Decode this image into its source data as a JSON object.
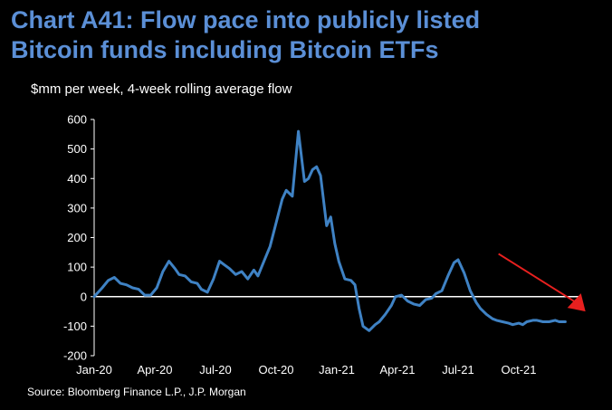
{
  "header": {
    "title_line1": "Chart A41: Flow pace into publicly listed",
    "title_line2": "Bitcoin funds including Bitcoin ETFs"
  },
  "footer": {
    "source": "Source: Bloomberg Finance L.P., J.P. Morgan"
  },
  "colors": {
    "line": "#3f82c4",
    "title": "#5b8fd6",
    "arrow": "#e8201f",
    "background": "#000000"
  },
  "chart_data": {
    "type": "line",
    "title": "Chart A41: Flow pace into publicly listed Bitcoin funds including Bitcoin ETFs",
    "subtitle": "$mm per week, 4-week rolling average flow",
    "xlabel": "",
    "ylabel": "$mm per week",
    "ylim": [
      -200,
      600
    ],
    "yticks": [
      -200,
      -100,
      0,
      100,
      200,
      300,
      400,
      500,
      600
    ],
    "ytick_labels": [
      "-200",
      "-100",
      "0",
      "100",
      "200",
      "300",
      "400",
      "500",
      "600"
    ],
    "xtick_labels": [
      "Jan-20",
      "Apr-20",
      "Jul-20",
      "Oct-20",
      "Jan-21",
      "Apr-21",
      "Jul-21",
      "Oct-21"
    ],
    "xtick_months": [
      0,
      3,
      6,
      9,
      12,
      15,
      18,
      21
    ],
    "xlim_months": [
      0,
      24
    ],
    "zero_line": true,
    "annotation": "red downward arrow at end of series",
    "series": [
      {
        "name": "4-week rolling average flow",
        "x_months": [
          0.0,
          0.4,
          0.7,
          1.0,
          1.3,
          1.6,
          1.9,
          2.2,
          2.5,
          2.8,
          3.1,
          3.4,
          3.7,
          4.0,
          4.2,
          4.5,
          4.8,
          5.1,
          5.3,
          5.6,
          5.9,
          6.2,
          6.4,
          6.7,
          7.0,
          7.3,
          7.6,
          7.9,
          8.1,
          8.4,
          8.7,
          9.0,
          9.3,
          9.5,
          9.8,
          10.1,
          10.4,
          10.6,
          10.8,
          11.0,
          11.2,
          11.5,
          11.7,
          11.9,
          12.1,
          12.4,
          12.7,
          12.9,
          13.1,
          13.3,
          13.6,
          13.9,
          14.1,
          14.4,
          14.7,
          14.9,
          15.2,
          15.5,
          15.8,
          16.1,
          16.4,
          16.7,
          16.9,
          17.2,
          17.5,
          17.8,
          18.0,
          18.3,
          18.6,
          18.9,
          19.1,
          19.4,
          19.7,
          19.9,
          20.2,
          20.5,
          20.7,
          21.0,
          21.2,
          21.4,
          21.7,
          21.9,
          22.2,
          22.5,
          22.8,
          23.0,
          23.3
        ],
        "values": [
          0,
          30,
          55,
          65,
          45,
          40,
          30,
          25,
          5,
          5,
          30,
          85,
          120,
          95,
          75,
          70,
          50,
          45,
          25,
          15,
          60,
          120,
          110,
          95,
          75,
          85,
          60,
          90,
          70,
          120,
          170,
          250,
          330,
          360,
          340,
          560,
          390,
          400,
          430,
          440,
          410,
          240,
          270,
          180,
          120,
          60,
          55,
          40,
          -40,
          -100,
          -115,
          -95,
          -85,
          -60,
          -30,
          0,
          5,
          -15,
          -25,
          -30,
          -10,
          -5,
          10,
          20,
          70,
          115,
          125,
          80,
          20,
          -20,
          -40,
          -60,
          -75,
          -80,
          -85,
          -90,
          -95,
          -90,
          -95,
          -85,
          -80,
          -80,
          -85,
          -85,
          -80,
          -85,
          -85
        ]
      }
    ]
  }
}
